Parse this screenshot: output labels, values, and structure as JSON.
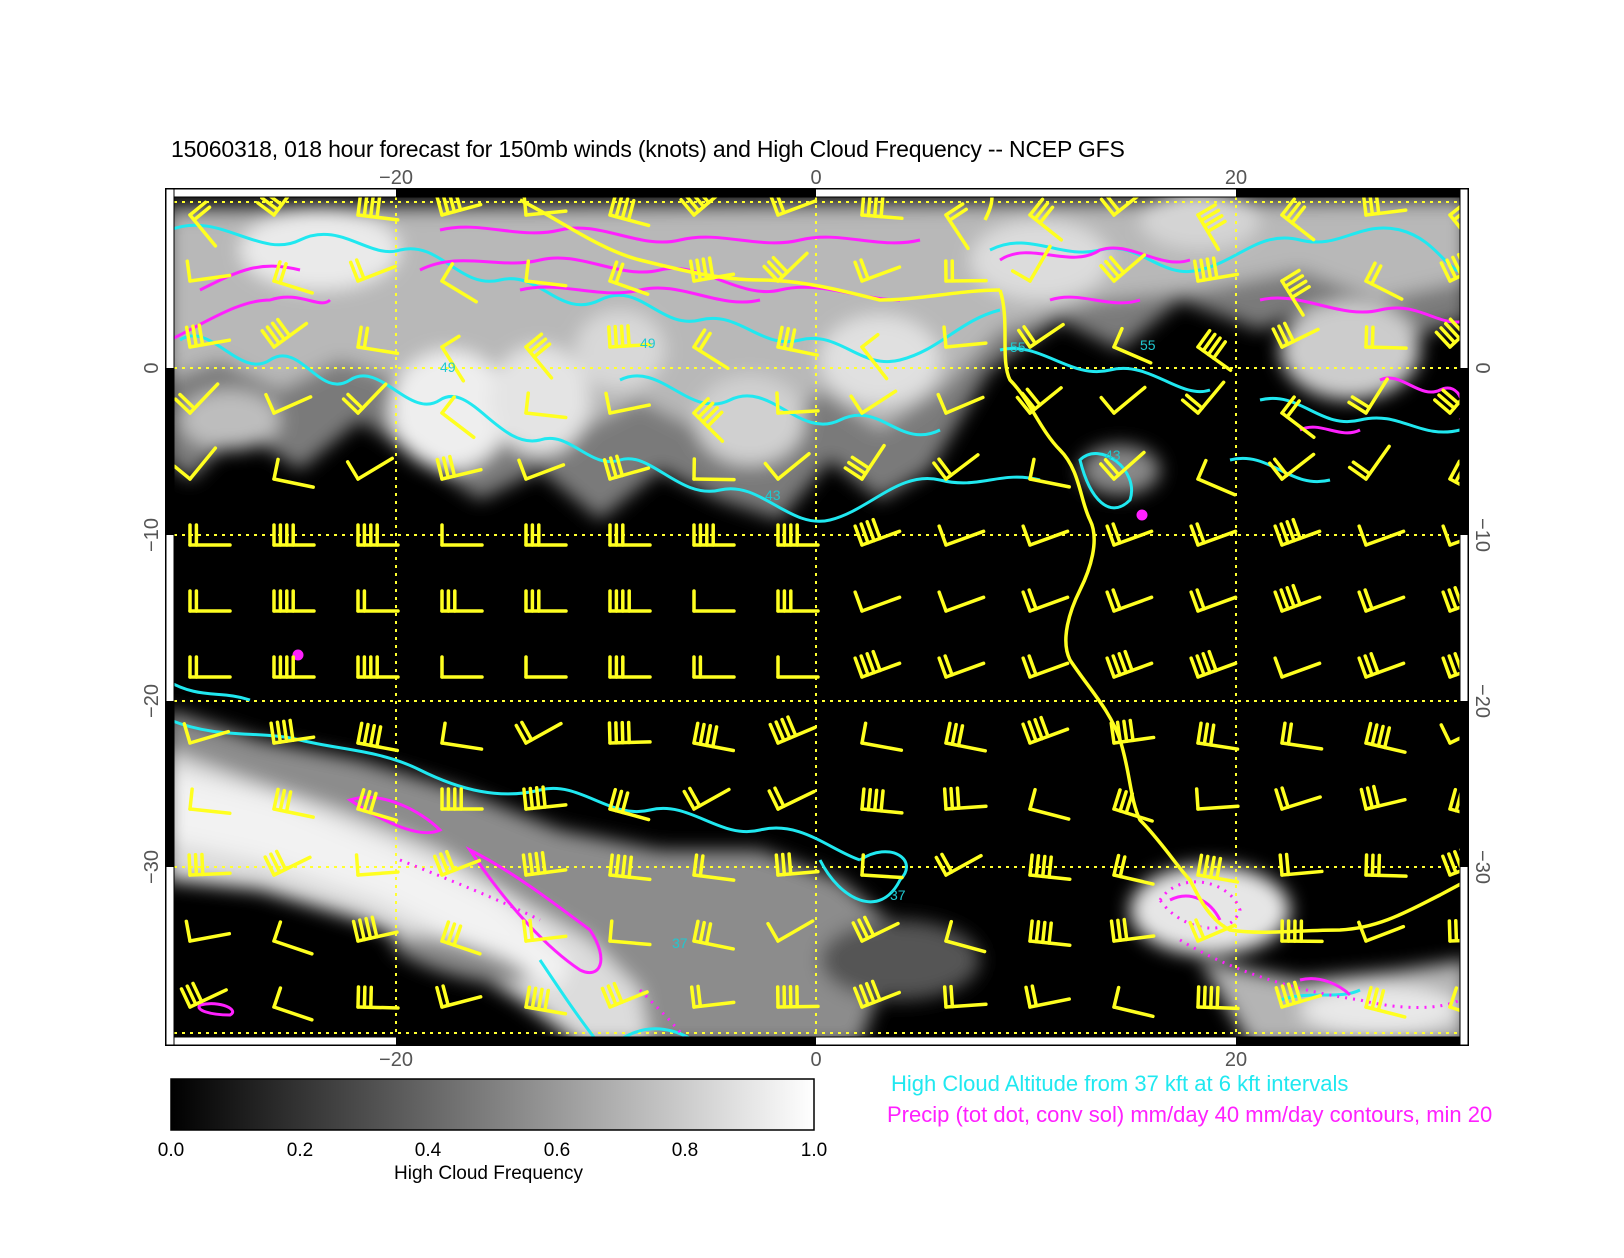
{
  "title": "15060318, 018 hour forecast for 150mb winds (knots) and High Cloud Frequency -- NCEP GFS",
  "map": {
    "lon_ticks": [
      "−20",
      "0",
      "20"
    ],
    "lat_ticks": [
      "0",
      "−10",
      "−20",
      "−30"
    ],
    "lon_range": [
      -30,
      31
    ],
    "lat_range": [
      -40,
      11
    ],
    "grid": "dotted yellow every 10 degrees",
    "colors": {
      "shading_low": "#000000",
      "shading_high": "#ffffff",
      "cloud_altitude_contours": "#20e8f0",
      "precip_contours": "#ff20ff",
      "wind_barbs_and_coastline": "#ffff20"
    },
    "contour_labels": [
      "49",
      "55",
      "43",
      "37"
    ]
  },
  "colorbar": {
    "label": "High Cloud Frequency",
    "ticks": [
      "0.0",
      "0.2",
      "0.4",
      "0.6",
      "0.8",
      "1.0"
    ],
    "range": [
      0,
      1
    ]
  },
  "legend": {
    "altitude": "High Cloud Altitude from 37 kft at 6 kft intervals",
    "precip": "Precip (tot dot, conv sol) mm/day 40 mm/day contours, min 20"
  }
}
